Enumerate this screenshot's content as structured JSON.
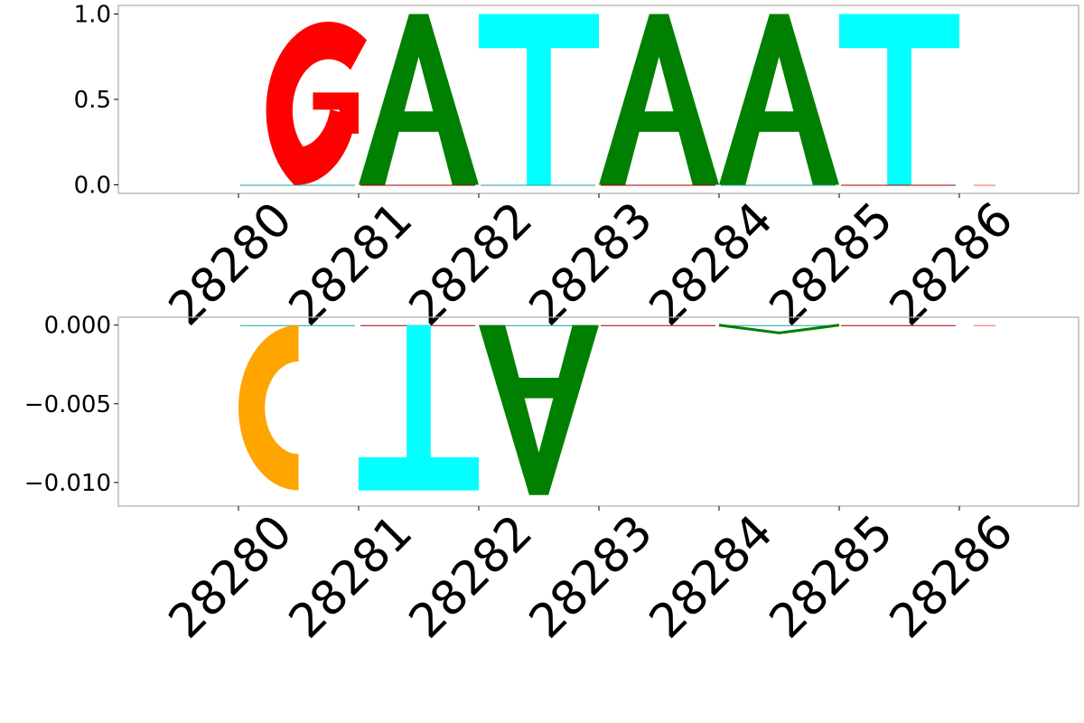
{
  "chart_data": [
    {
      "type": "sequence-logo",
      "panel": "top",
      "x": [
        28280,
        28281,
        28282,
        28283,
        28284,
        28285,
        28286
      ],
      "x_tick_labels": [
        "28280",
        "28281",
        "28282",
        "28283",
        "28284",
        "28285",
        "28286"
      ],
      "ylim": [
        -0.05,
        1.05
      ],
      "y_ticks": [
        0.0,
        0.5,
        1.0
      ],
      "y_tick_labels": [
        "0.0",
        "0.5",
        "1.0"
      ],
      "letters": [
        {
          "base": "G",
          "position": 28280,
          "value": 1.0
        },
        {
          "base": "A",
          "position": 28281,
          "value": 1.0
        },
        {
          "base": "T",
          "position": 28282,
          "value": 1.0
        },
        {
          "base": "A",
          "position": 28283,
          "value": 1.0
        },
        {
          "base": "A",
          "position": 28284,
          "value": 1.0
        },
        {
          "base": "T",
          "position": 28285,
          "value": 1.0
        }
      ],
      "grid": false,
      "legend": "none"
    },
    {
      "type": "sequence-logo",
      "panel": "bottom",
      "x": [
        28280,
        28281,
        28282,
        28283,
        28284,
        28285,
        28286
      ],
      "x_tick_labels": [
        "28280",
        "28281",
        "28282",
        "28283",
        "28284",
        "28285",
        "28286"
      ],
      "ylim": [
        -0.0115,
        0.0005
      ],
      "y_ticks": [
        0.0,
        -0.005,
        -0.01
      ],
      "y_tick_labels": [
        "0.000",
        "−0.005",
        "−0.010"
      ],
      "letters": [
        {
          "base": "C",
          "position": 28280,
          "value": -0.0105
        },
        {
          "base": "T",
          "position": 28281,
          "value": -0.0105
        },
        {
          "base": "A",
          "position": 28282,
          "value": -0.0108
        },
        {
          "base": "A",
          "position": 28284,
          "value": -0.0005
        }
      ],
      "grid": false,
      "legend": "none"
    }
  ],
  "base_colors": {
    "A": "#008000",
    "C": "#ffa500",
    "G": "#ff0000",
    "T": "#00ffff"
  }
}
